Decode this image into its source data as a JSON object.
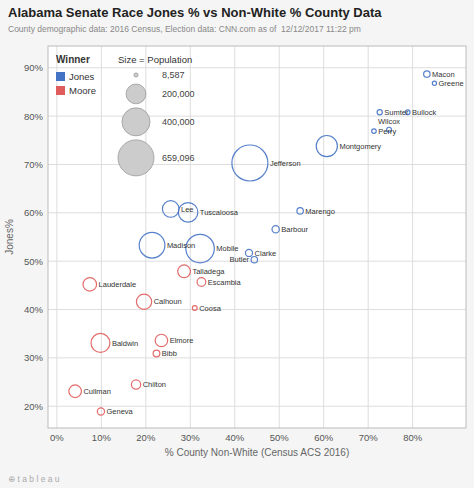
{
  "chart_data": {
    "type": "scatter",
    "title": "Alabama Senate Race Jones % vs Non-White % County Data",
    "subtitle": "County demographic data: 2016 Census, Election data: CNN.com as of  12/12/2017 11:22 pm",
    "footnote": "⊕ t a b l e a u",
    "xlabel": "% County Non-White (Census ACS 2016)",
    "ylabel": "Jones%",
    "xlim": [
      -0.02,
      0.92
    ],
    "ylim": [
      0.155,
      0.945
    ],
    "xticks": [
      {
        "value": 0.0,
        "label": "0%"
      },
      {
        "value": 0.1,
        "label": "10%"
      },
      {
        "value": 0.2,
        "label": "20%"
      },
      {
        "value": 0.3,
        "label": "30%"
      },
      {
        "value": 0.4,
        "label": "40%"
      },
      {
        "value": 0.5,
        "label": "50%"
      },
      {
        "value": 0.6,
        "label": "60%"
      },
      {
        "value": 0.7,
        "label": "70%"
      },
      {
        "value": 0.8,
        "label": "80%"
      }
    ],
    "yticks": [
      {
        "value": 0.2,
        "label": "20%"
      },
      {
        "value": 0.3,
        "label": "30%"
      },
      {
        "value": 0.4,
        "label": "40%"
      },
      {
        "value": 0.5,
        "label": "50%"
      },
      {
        "value": 0.6,
        "label": "60%"
      },
      {
        "value": 0.7,
        "label": "70%"
      },
      {
        "value": 0.8,
        "label": "80%"
      },
      {
        "value": 0.9,
        "label": "90%"
      }
    ],
    "grid": true,
    "legend": "upper left",
    "legend_title": "Winner",
    "size_legend": {
      "title": "Size = Population",
      "ticks": [
        {
          "value": 8587,
          "label": "8,587"
        },
        {
          "value": 200000,
          "label": "200,000"
        },
        {
          "value": 400000,
          "label": "400,000"
        },
        {
          "value": 659096,
          "label": "659,096"
        }
      ]
    },
    "series": [
      {
        "name": "Jones",
        "color": "#4472C4",
        "labels": [
          "Macon",
          "Greene",
          "Sumter",
          "Bullock",
          "Perry",
          "Wilcox",
          "Jefferson",
          "Montgomery",
          "Lee",
          "Tuscaloosa",
          "Marengo",
          "Madison",
          "Mobile",
          "Barbour",
          "Clarke",
          "Butler"
        ],
        "x": [
          0.832,
          0.849,
          0.726,
          0.789,
          0.713,
          0.747,
          0.434,
          0.607,
          0.256,
          0.295,
          0.547,
          0.214,
          0.322,
          0.492,
          0.432,
          0.444
        ],
        "values": [
          0.887,
          0.868,
          0.808,
          0.808,
          0.769,
          0.772,
          0.703,
          0.738,
          0.608,
          0.601,
          0.604,
          0.533,
          0.526,
          0.566,
          0.517,
          0.503
        ],
        "sizes": [
          21452,
          9045,
          13763,
          10914,
          10591,
          11670,
          659096,
          229363,
          140247,
          194656,
          21027,
          334811,
          412992,
          27457,
          25833,
          20947
        ]
      },
      {
        "name": "Moore",
        "color": "#E05C5C",
        "labels": [
          "Talladega",
          "Escambia",
          "Lauderdale",
          "Calhoun",
          "Coosa",
          "Baldwin",
          "Elmore",
          "Bibb",
          "Cullman",
          "Chilton",
          "Geneva"
        ],
        "x": [
          0.286,
          0.325,
          0.074,
          0.196,
          0.31,
          0.098,
          0.235,
          0.224,
          0.041,
          0.178,
          0.099
        ],
        "values": [
          0.479,
          0.457,
          0.452,
          0.416,
          0.403,
          0.331,
          0.336,
          0.309,
          0.231,
          0.245,
          0.189
        ],
        "sizes": [
          82291,
          38319,
          92709,
          118572,
          11539,
          182265,
          79303,
          22915,
          80406,
          43643,
          26491
        ]
      }
    ]
  }
}
